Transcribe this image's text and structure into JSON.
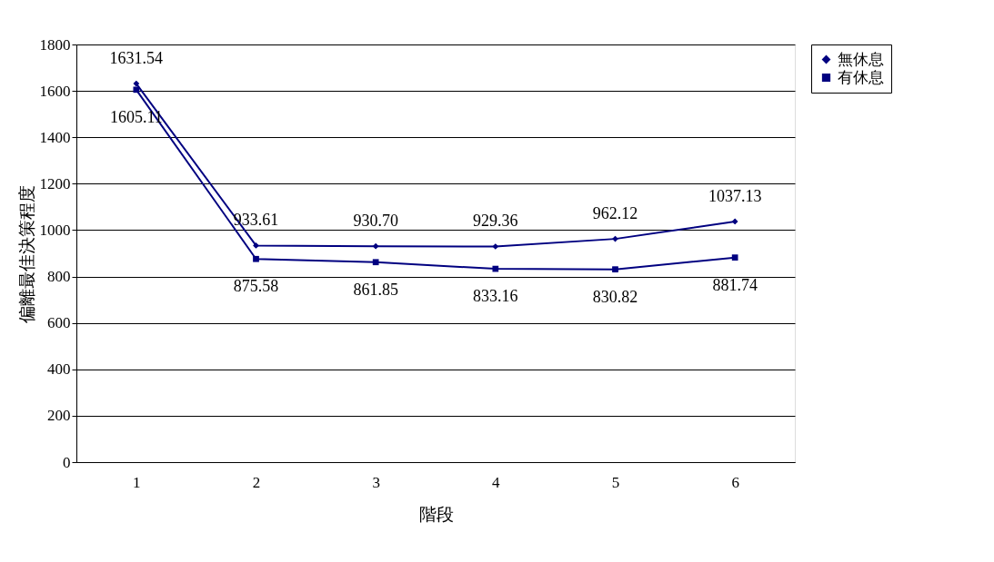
{
  "chart_data": {
    "type": "line",
    "xlabel": "階段",
    "ylabel": "偏離最佳決策程度",
    "categories": [
      "1",
      "2",
      "3",
      "4",
      "5",
      "6"
    ],
    "series": [
      {
        "name": "無休息",
        "color": "#000080",
        "marker": "diamond",
        "values": [
          1631.54,
          933.61,
          930.7,
          929.36,
          962.12,
          1037.13
        ],
        "value_labels": [
          "1631.54",
          "933.61",
          "930.70",
          "929.36",
          "962.12",
          "1037.13"
        ]
      },
      {
        "name": "有休息",
        "color": "#000080",
        "marker": "square",
        "values": [
          1605.11,
          875.58,
          861.85,
          833.16,
          830.82,
          881.74
        ],
        "value_labels": [
          "1605.11",
          "875.58",
          "861.85",
          "833.16",
          "830.82",
          "881.74"
        ]
      }
    ],
    "ylim": [
      0,
      1800
    ],
    "yticks": [
      0,
      200,
      400,
      600,
      800,
      1000,
      1200,
      1400,
      1600,
      1800
    ],
    "grid": "y",
    "legend": "right",
    "line_style": "solid"
  }
}
